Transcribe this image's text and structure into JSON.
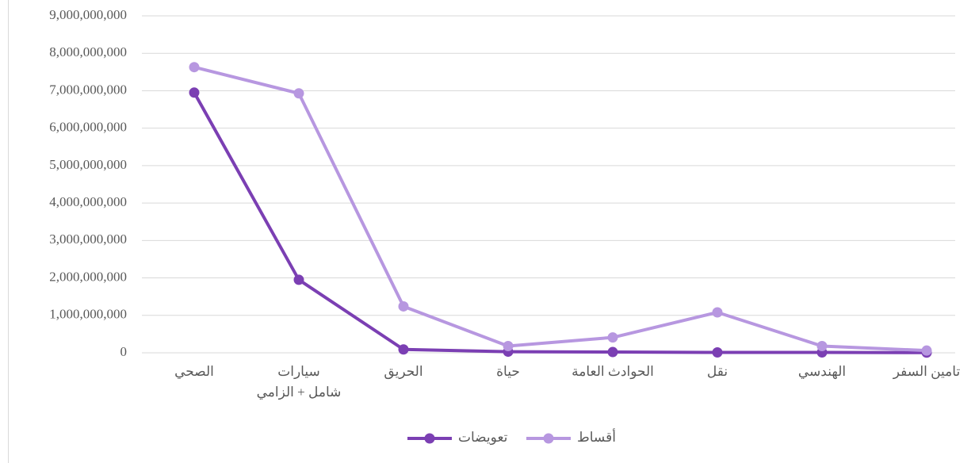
{
  "chart_data": {
    "type": "line",
    "categories": [
      "الصحي",
      "سيارات\nشامل + الزامي",
      "الحريق",
      "حياة",
      "الحوادث العامة",
      "نقل",
      "الهندسي",
      "تامين السفر"
    ],
    "series": [
      {
        "name": "تعويضات",
        "color": "#7b3fb3",
        "values": [
          6950000000,
          1950000000,
          90000000,
          30000000,
          20000000,
          10000000,
          10000000,
          5000000
        ]
      },
      {
        "name": "أقساط",
        "color": "#b797e0",
        "values": [
          7630000000,
          6930000000,
          1240000000,
          180000000,
          410000000,
          1080000000,
          180000000,
          60000000
        ]
      }
    ],
    "ylim": [
      0,
      9000000000
    ],
    "yticks": [
      0,
      {
        "value": 1000000000,
        "label": "1,000,000,000"
      },
      {
        "value": 2000000000,
        "label": "2,000,000,000"
      },
      {
        "value": 3000000000,
        "label": "3,000,000,000"
      },
      {
        "value": 4000000000,
        "label": "4,000,000,000"
      },
      {
        "value": 5000000000,
        "label": "5,000,000,000"
      },
      {
        "value": 6000000000,
        "label": "6,000,000,000"
      },
      {
        "value": 7000000000,
        "label": "7,000,000,000"
      },
      {
        "value": 8000000000,
        "label": "8,000,000,000"
      },
      {
        "value": 9000000000,
        "label": "9,000,000,000"
      }
    ],
    "grid": true,
    "legend": "bottom"
  }
}
